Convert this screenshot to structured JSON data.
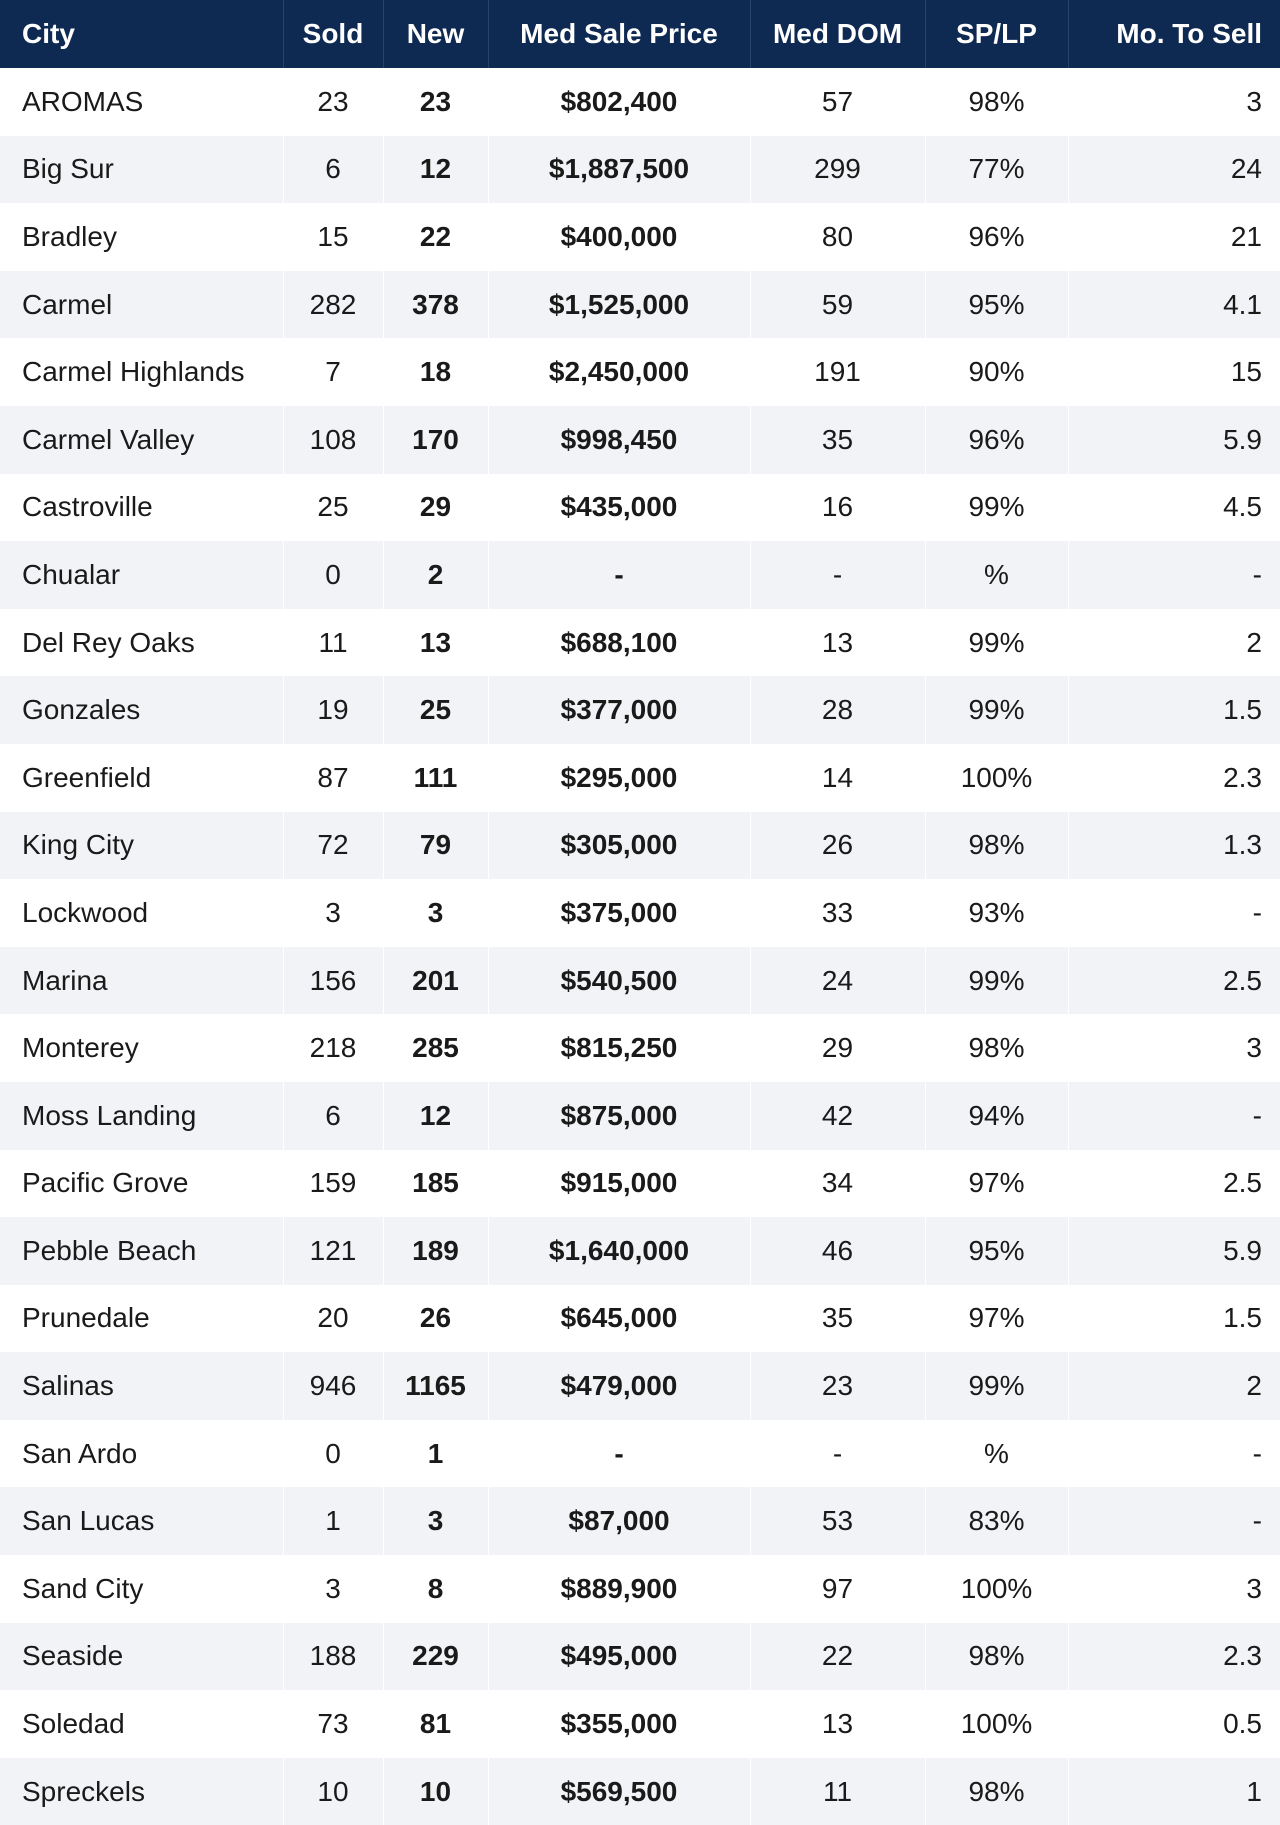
{
  "headers": {
    "city": "City",
    "sold": "Sold",
    "new": "New",
    "price": "Med Sale Price",
    "dom": "Med DOM",
    "splp": "SP/LP",
    "mo": "Mo. To Sell"
  },
  "rows": [
    {
      "city": "AROMAS",
      "sold": "23",
      "new": "23",
      "price": "$802,400",
      "dom": "57",
      "splp": "98%",
      "mo": "3"
    },
    {
      "city": "Big Sur",
      "sold": "6",
      "new": "12",
      "price": "$1,887,500",
      "dom": "299",
      "splp": "77%",
      "mo": "24"
    },
    {
      "city": "Bradley",
      "sold": "15",
      "new": "22",
      "price": "$400,000",
      "dom": "80",
      "splp": "96%",
      "mo": "21"
    },
    {
      "city": "Carmel",
      "sold": "282",
      "new": "378",
      "price": "$1,525,000",
      "dom": "59",
      "splp": "95%",
      "mo": "4.1"
    },
    {
      "city": "Carmel Highlands",
      "sold": "7",
      "new": "18",
      "price": "$2,450,000",
      "dom": "191",
      "splp": "90%",
      "mo": "15"
    },
    {
      "city": "Carmel Valley",
      "sold": "108",
      "new": "170",
      "price": "$998,450",
      "dom": "35",
      "splp": "96%",
      "mo": "5.9"
    },
    {
      "city": "Castroville",
      "sold": "25",
      "new": "29",
      "price": "$435,000",
      "dom": "16",
      "splp": "99%",
      "mo": "4.5"
    },
    {
      "city": "Chualar",
      "sold": "0",
      "new": "2",
      "price": "-",
      "dom": "-",
      "splp": "%",
      "mo": "-"
    },
    {
      "city": "Del Rey Oaks",
      "sold": "11",
      "new": "13",
      "price": "$688,100",
      "dom": "13",
      "splp": "99%",
      "mo": "2"
    },
    {
      "city": "Gonzales",
      "sold": "19",
      "new": "25",
      "price": "$377,000",
      "dom": "28",
      "splp": "99%",
      "mo": "1.5"
    },
    {
      "city": "Greenfield",
      "sold": "87",
      "new": "111",
      "price": "$295,000",
      "dom": "14",
      "splp": "100%",
      "mo": "2.3"
    },
    {
      "city": "King City",
      "sold": "72",
      "new": "79",
      "price": "$305,000",
      "dom": "26",
      "splp": "98%",
      "mo": "1.3"
    },
    {
      "city": "Lockwood",
      "sold": "3",
      "new": "3",
      "price": "$375,000",
      "dom": "33",
      "splp": "93%",
      "mo": "-"
    },
    {
      "city": "Marina",
      "sold": "156",
      "new": "201",
      "price": "$540,500",
      "dom": "24",
      "splp": "99%",
      "mo": "2.5"
    },
    {
      "city": "Monterey",
      "sold": "218",
      "new": "285",
      "price": "$815,250",
      "dom": "29",
      "splp": "98%",
      "mo": "3"
    },
    {
      "city": "Moss Landing",
      "sold": "6",
      "new": "12",
      "price": "$875,000",
      "dom": "42",
      "splp": "94%",
      "mo": "-"
    },
    {
      "city": "Pacific Grove",
      "sold": "159",
      "new": "185",
      "price": "$915,000",
      "dom": "34",
      "splp": "97%",
      "mo": "2.5"
    },
    {
      "city": "Pebble Beach",
      "sold": "121",
      "new": "189",
      "price": "$1,640,000",
      "dom": "46",
      "splp": "95%",
      "mo": "5.9"
    },
    {
      "city": "Prunedale",
      "sold": "20",
      "new": "26",
      "price": "$645,000",
      "dom": "35",
      "splp": "97%",
      "mo": "1.5"
    },
    {
      "city": "Salinas",
      "sold": "946",
      "new": "1165",
      "price": "$479,000",
      "dom": "23",
      "splp": "99%",
      "mo": "2"
    },
    {
      "city": "San Ardo",
      "sold": "0",
      "new": "1",
      "price": "-",
      "dom": "-",
      "splp": "%",
      "mo": "-"
    },
    {
      "city": "San Lucas",
      "sold": "1",
      "new": "3",
      "price": "$87,000",
      "dom": "53",
      "splp": "83%",
      "mo": "-"
    },
    {
      "city": "Sand City",
      "sold": "3",
      "new": "8",
      "price": "$889,900",
      "dom": "97",
      "splp": "100%",
      "mo": "3"
    },
    {
      "city": "Seaside",
      "sold": "188",
      "new": "229",
      "price": "$495,000",
      "dom": "22",
      "splp": "98%",
      "mo": "2.3"
    },
    {
      "city": "Soledad",
      "sold": "73",
      "new": "81",
      "price": "$355,000",
      "dom": "13",
      "splp": "100%",
      "mo": "0.5"
    },
    {
      "city": "Spreckels",
      "sold": "10",
      "new": "10",
      "price": "$569,500",
      "dom": "11",
      "splp": "98%",
      "mo": "1"
    }
  ]
}
